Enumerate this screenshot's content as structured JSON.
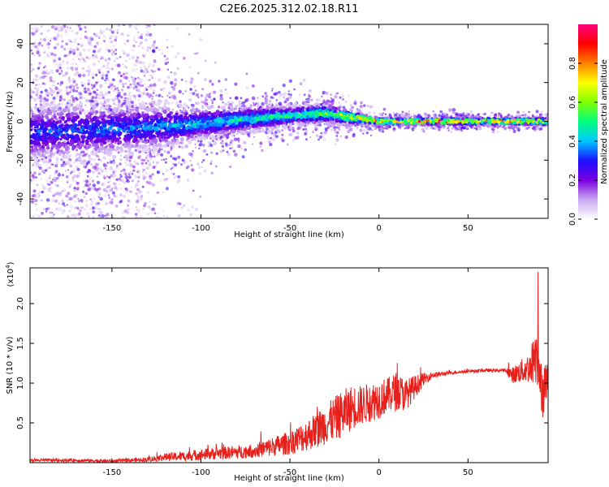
{
  "figure": {
    "title": "C2E6.2025.312.02.18.R11"
  },
  "chart_data": [
    {
      "type": "heatmap",
      "name": "spectrogram",
      "title": "C2E6.2025.312.02.18.R11",
      "xlabel": "Height of straight line (km)",
      "ylabel": "Frequency (Hz)",
      "xlim": [
        -196,
        95
      ],
      "ylim": [
        -50,
        50
      ],
      "xticks": [
        -150,
        -100,
        -50,
        0,
        50
      ],
      "xtick_labels": [
        "-150",
        "-100",
        "-50",
        "0",
        "50"
      ],
      "yticks": [
        -40,
        -20,
        0,
        20,
        40
      ],
      "ytick_labels": [
        "-40",
        "-20",
        "0",
        "20",
        "40"
      ],
      "colorbar": {
        "label": "Normalized spectral amplitude",
        "range": [
          0,
          1
        ],
        "ticks": [
          0.0,
          0.2,
          0.4,
          0.6,
          0.8
        ],
        "tick_labels": [
          "0.0",
          "0.2",
          "0.4",
          "0.6",
          "0.8"
        ],
        "colormap": [
          "#ffffff",
          "#c8a8f0",
          "#7a00e0",
          "#1a10ff",
          "#00c8ff",
          "#00ff80",
          "#80ff00",
          "#ffff00",
          "#ff8000",
          "#ff0000",
          "#ff0080"
        ]
      },
      "ridge": {
        "x": [
          -196,
          -175,
          -150,
          -125,
          -100,
          -75,
          -50,
          -30,
          -15,
          0,
          10,
          25,
          50,
          75,
          95
        ],
        "center": [
          -6,
          -5,
          -4,
          -3,
          -1,
          1,
          3,
          4,
          2,
          0,
          0,
          0,
          0,
          0,
          0
        ],
        "width": [
          9,
          9,
          8,
          7,
          5,
          4,
          3,
          3,
          2,
          1,
          1,
          1,
          1,
          1,
          1
        ],
        "peak": [
          0.35,
          0.35,
          0.38,
          0.4,
          0.45,
          0.5,
          0.55,
          0.6,
          0.75,
          0.9,
          0.8,
          0.95,
          0.85,
          0.9,
          0.8
        ]
      },
      "background_scatter": {
        "x_range": [
          -196,
          -125
        ],
        "y_range": [
          -50,
          50
        ]
      },
      "grid": false,
      "legend": "colorbar-right"
    },
    {
      "type": "line",
      "name": "snr",
      "xlabel": "Height of straight line (km)",
      "ylabel": "SNR (10 * v/v)",
      "y_scale_label": "(x10",
      "y_scale_exp": "4",
      "xlim": [
        -196,
        95
      ],
      "ylim": [
        0,
        2.45
      ],
      "xticks": [
        -150,
        -100,
        -50,
        0,
        50
      ],
      "xtick_labels": [
        "-150",
        "-100",
        "-50",
        "0",
        "50"
      ],
      "yticks": [
        0.5,
        1.0,
        1.5,
        2.0
      ],
      "ytick_labels": [
        "0.5",
        "1.0",
        "1.5",
        "2.0"
      ],
      "color": "#e8201c",
      "series": [
        {
          "x": [
            -196,
            -170,
            -150,
            -130,
            -120,
            -110,
            -100,
            -90,
            -80,
            -70,
            -60,
            -50,
            -40,
            -30,
            -20,
            -15,
            -10,
            0,
            5,
            10,
            15,
            20,
            25,
            30,
            40,
            50,
            60,
            70,
            72,
            75,
            80,
            85,
            88,
            90,
            92,
            95
          ],
          "y": [
            0.03,
            0.03,
            0.02,
            0.04,
            0.07,
            0.08,
            0.1,
            0.12,
            0.13,
            0.15,
            0.2,
            0.25,
            0.35,
            0.48,
            0.62,
            0.7,
            0.72,
            0.8,
            0.85,
            0.9,
            0.85,
            0.95,
            1.05,
            1.1,
            1.13,
            1.15,
            1.16,
            1.16,
            1.15,
            1.1,
            1.15,
            1.2,
            1.4,
            1.25,
            0.9,
            1.1
          ],
          "noise": [
            0.02,
            0.02,
            0.02,
            0.03,
            0.05,
            0.06,
            0.07,
            0.08,
            0.08,
            0.09,
            0.12,
            0.15,
            0.2,
            0.25,
            0.3,
            0.28,
            0.25,
            0.25,
            0.22,
            0.25,
            0.2,
            0.15,
            0.08,
            0.04,
            0.02,
            0.02,
            0.02,
            0.02,
            0.05,
            0.1,
            0.15,
            0.2,
            0.4,
            0.45,
            0.35,
            0.2
          ]
        }
      ],
      "grid": false
    }
  ]
}
